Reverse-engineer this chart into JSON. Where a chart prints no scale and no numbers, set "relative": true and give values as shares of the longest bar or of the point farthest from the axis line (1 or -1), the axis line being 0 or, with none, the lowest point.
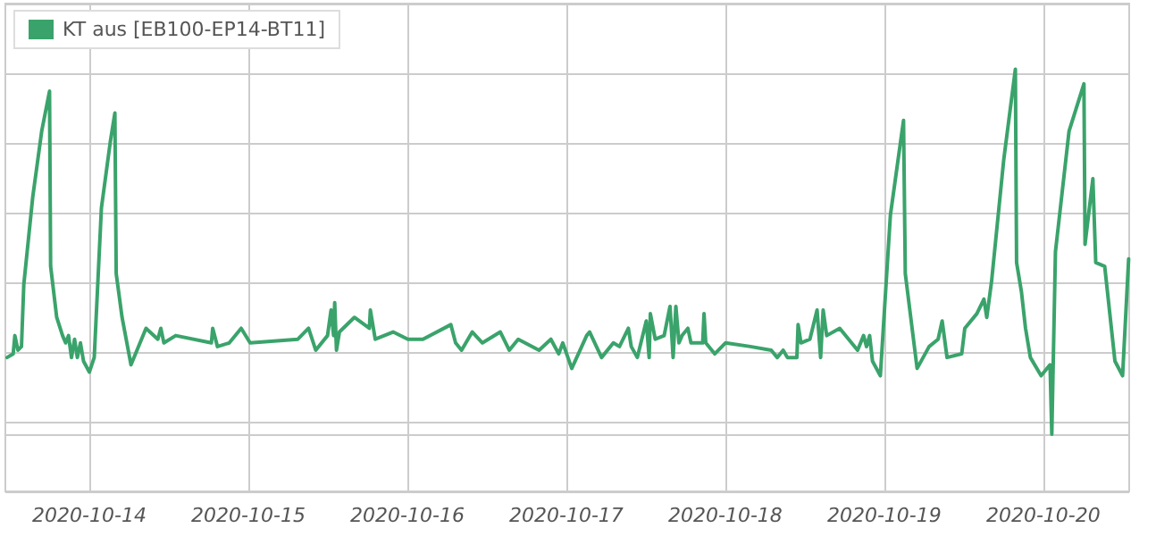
{
  "chart_data": {
    "type": "line",
    "relative": true,
    "grid": true,
    "legend": "top left",
    "marker": "none",
    "line_style": "solid",
    "xlim": [
      "2020-10-13T11:19",
      "2020-10-20T12:58"
    ],
    "xticks": [
      "2020-10-14",
      "2020-10-15",
      "2020-10-16",
      "2020-10-17",
      "2020-10-18",
      "2020-10-19",
      "2020-10-20"
    ],
    "x": [
      "2020-10-13T11:35",
      "2020-10-13T12:30",
      "2020-10-13T12:45",
      "2020-10-13T13:13",
      "2020-10-13T13:45",
      "2020-10-13T14:06",
      "2020-10-13T15:27",
      "2020-10-13T16:48",
      "2020-10-13T17:59",
      "2020-10-13T18:09",
      "2020-10-13T19:04",
      "2020-10-13T19:57",
      "2020-10-13T20:25",
      "2020-10-13T20:51",
      "2020-10-13T21:18",
      "2020-10-13T21:46",
      "2020-10-13T22:11",
      "2020-10-13T22:39",
      "2020-10-13T23:07",
      "2020-10-14T00:00",
      "2020-10-14T00:44",
      "2020-10-14T01:49",
      "2020-10-14T03:09",
      "2020-10-14T03:51",
      "2020-10-14T04:03",
      "2020-10-14T04:56",
      "2020-10-14T06:17",
      "2020-10-14T08:33",
      "2020-10-14T10:20",
      "2020-10-14T10:47",
      "2020-10-14T11:15",
      "2020-10-14T13:02",
      "2020-10-14T18:25",
      "2020-10-14T18:37",
      "2020-10-14T19:20",
      "2020-10-14T21:07",
      "2020-10-14T22:55",
      "2020-10-15T00:16",
      "2020-10-15T07:28",
      "2020-10-15T09:05",
      "2020-10-15T10:10",
      "2020-10-15T11:57",
      "2020-10-15T12:29",
      "2020-10-15T12:52",
      "2020-10-15T13:02",
      "2020-10-15T13:18",
      "2020-10-15T13:45",
      "2020-10-15T16:00",
      "2020-10-15T18:16",
      "2020-10-15T18:25",
      "2020-10-15T19:09",
      "2020-10-15T21:51",
      "2020-10-16T00:05",
      "2020-10-16T02:21",
      "2020-10-16T06:34",
      "2020-10-16T07:17",
      "2020-10-16T08:11",
      "2020-10-16T09:48",
      "2020-10-16T11:20",
      "2020-10-16T14:02",
      "2020-10-16T15:23",
      "2020-10-16T16:44",
      "2020-10-16T19:53",
      "2020-10-16T21:40",
      "2020-10-16T22:51",
      "2020-10-16T23:28",
      "2020-10-17T00:49",
      "2020-10-17T03:04",
      "2020-10-17T03:31",
      "2020-10-17T05:19",
      "2020-10-17T07:06",
      "2020-10-17T08:01",
      "2020-10-17T09:22",
      "2020-10-17T09:48",
      "2020-10-17T10:43",
      "2020-10-17T12:04",
      "2020-10-17T12:30",
      "2020-10-17T12:41",
      "2020-10-17T13:25",
      "2020-10-17T14:46",
      "2020-10-17T15:39",
      "2020-10-17T16:07",
      "2020-10-17T16:32",
      "2020-10-17T17:00",
      "2020-10-17T17:28",
      "2020-10-17T18:21",
      "2020-10-17T18:49",
      "2020-10-17T20:35",
      "2020-10-17T20:47",
      "2020-10-17T21:03",
      "2020-10-17T22:24",
      "2020-10-18T00:01",
      "2020-10-18T03:47",
      "2020-10-18T06:56",
      "2020-10-18T07:50",
      "2020-10-18T08:44",
      "2020-10-18T09:22",
      "2020-10-18T10:48",
      "2020-10-18T10:59",
      "2020-10-18T11:25",
      "2020-10-18T12:46",
      "2020-10-18T13:51",
      "2020-10-18T14:23",
      "2020-10-18T14:46",
      "2020-10-18T15:18",
      "2020-10-18T17:16",
      "2020-10-18T19:58",
      "2020-10-18T20:52",
      "2020-10-18T21:19",
      "2020-10-18T21:47",
      "2020-10-18T22:13",
      "2020-10-18T23:24",
      "2020-10-19T00:55",
      "2020-10-19T02:54",
      "2020-10-19T03:10",
      "2020-10-19T04:57",
      "2020-10-19T06:46",
      "2020-10-19T08:07",
      "2020-10-19T08:44",
      "2020-10-19T09:28",
      "2020-10-19T11:41",
      "2020-10-19T12:09",
      "2020-10-19T13:58",
      "2020-10-19T15:02",
      "2020-10-19T15:28",
      "2020-10-19T16:12",
      "2020-10-19T18:01",
      "2020-10-19T19:47",
      "2020-10-19T19:58",
      "2020-10-19T20:42",
      "2020-10-19T21:19",
      "2020-10-19T22:03",
      "2020-10-19T23:40",
      "2020-10-20T01:01",
      "2020-10-20T01:17",
      "2020-10-20T01:50",
      "2020-10-20T03:53",
      "2020-10-20T06:08",
      "2020-10-20T06:18",
      "2020-10-20T07:29",
      "2020-10-20T07:55",
      "2020-10-20T09:16",
      "2020-10-20T10:49",
      "2020-10-20T11:58",
      "2020-10-20T12:53"
    ],
    "series": [
      {
        "name": "KT aus [EB100-EP14-BT11]",
        "color": "#3aa36b",
        "values": [
          0.21,
          0.22,
          0.27,
          0.23,
          0.24,
          0.41,
          0.65,
          0.83,
          0.94,
          0.46,
          0.32,
          0.27,
          0.25,
          0.27,
          0.21,
          0.26,
          0.21,
          0.25,
          0.2,
          0.17,
          0.21,
          0.62,
          0.8,
          0.88,
          0.44,
          0.32,
          0.19,
          0.29,
          0.26,
          0.29,
          0.25,
          0.27,
          0.25,
          0.29,
          0.24,
          0.25,
          0.29,
          0.25,
          0.26,
          0.29,
          0.23,
          0.27,
          0.34,
          0.27,
          0.36,
          0.23,
          0.28,
          0.32,
          0.29,
          0.34,
          0.26,
          0.28,
          0.26,
          0.26,
          0.3,
          0.25,
          0.23,
          0.28,
          0.25,
          0.28,
          0.23,
          0.26,
          0.23,
          0.26,
          0.22,
          0.25,
          0.18,
          0.27,
          0.28,
          0.21,
          0.25,
          0.24,
          0.29,
          0.24,
          0.21,
          0.31,
          0.21,
          0.33,
          0.26,
          0.27,
          0.35,
          0.21,
          0.35,
          0.25,
          0.27,
          0.29,
          0.25,
          0.25,
          0.33,
          0.25,
          0.22,
          0.25,
          0.24,
          0.23,
          0.21,
          0.23,
          0.21,
          0.21,
          0.3,
          0.25,
          0.26,
          0.34,
          0.21,
          0.34,
          0.27,
          0.29,
          0.23,
          0.27,
          0.24,
          0.27,
          0.2,
          0.16,
          0.6,
          0.86,
          0.44,
          0.18,
          0.24,
          0.26,
          0.31,
          0.21,
          0.22,
          0.29,
          0.33,
          0.37,
          0.32,
          0.42,
          0.75,
          1.0,
          0.47,
          0.39,
          0.29,
          0.21,
          0.16,
          0.19,
          0,
          0.5,
          0.83,
          0.96,
          0.52,
          0.7,
          0.47,
          0.46,
          0.2,
          0.16,
          0.48
        ]
      }
    ]
  }
}
